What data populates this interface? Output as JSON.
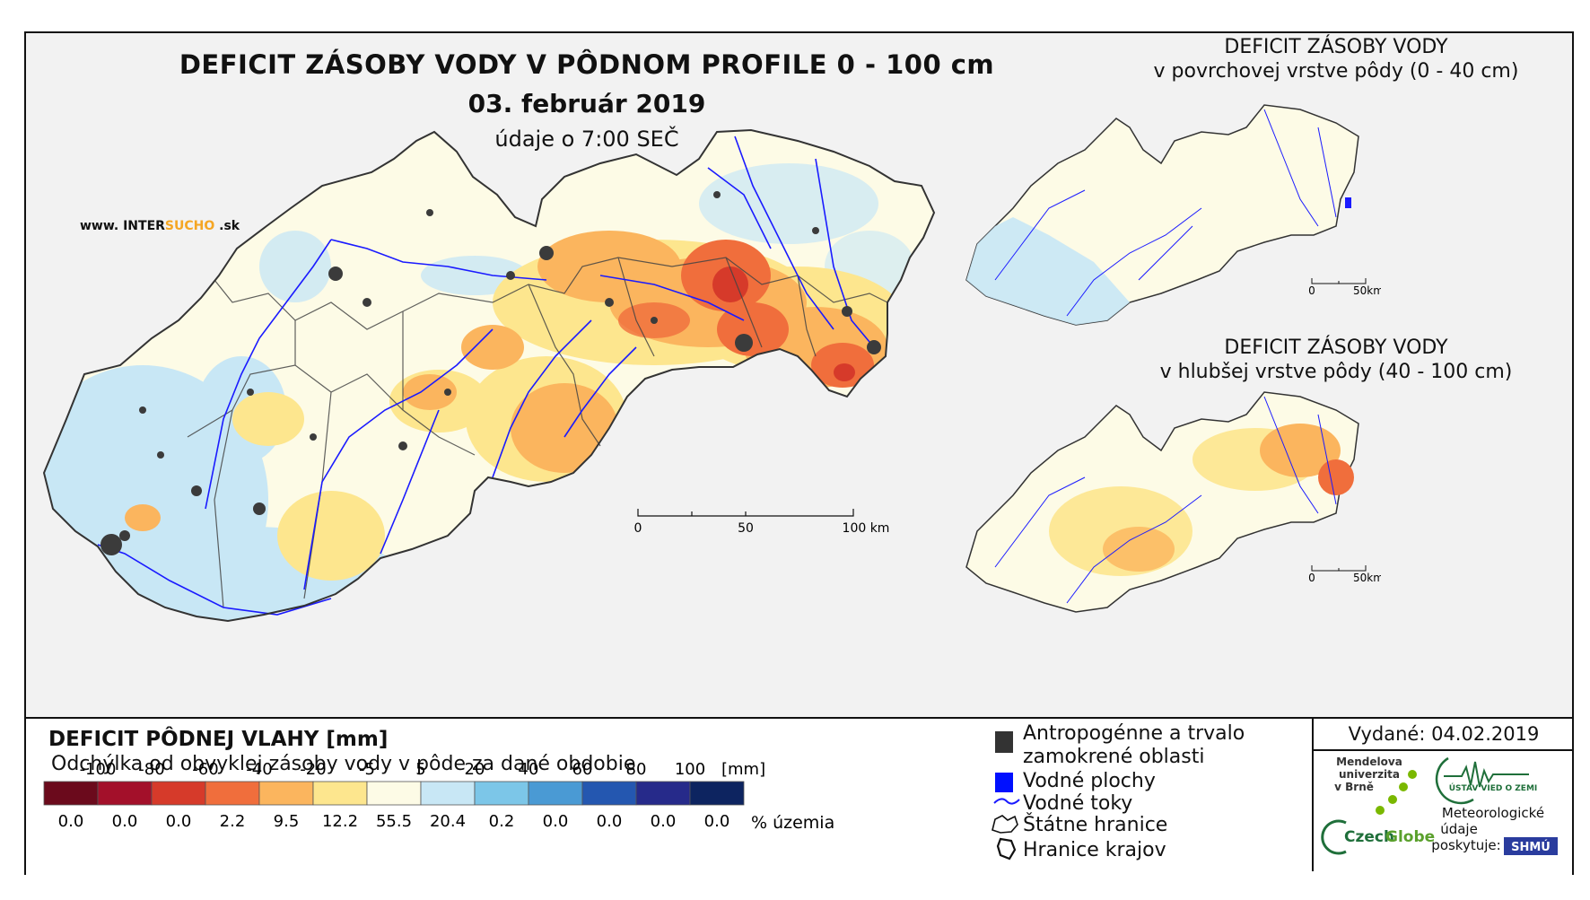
{
  "title": "DEFICIT ZÁSOBY VODY V PÔDNOM PROFILE 0 - 100 cm",
  "date": "03. február 2019",
  "time_note": "údaje o 7:00 SEČ",
  "website": {
    "prefix": "www. INTER",
    "accent": "SUCHO",
    "suffix": " .sk"
  },
  "main_scale": {
    "labels": [
      "0",
      "50",
      "100 km"
    ]
  },
  "inset_top": {
    "title_line1": "DEFICIT ZÁSOBY VODY",
    "title_line2": "v povrchovej vrstve pôdy (0 - 40 cm)",
    "scale": [
      "0",
      "50km"
    ]
  },
  "inset_bottom": {
    "title_line1": "DEFICIT ZÁSOBY VODY",
    "title_line2": "v hlubšej vrstve pôdy (40 - 100 cm)",
    "scale": [
      "0",
      "50km"
    ]
  },
  "legend": {
    "title": "DEFICIT PÔDNEJ VLAHY [mm]",
    "subtitle": "Odchýlka od obvyklej zásoby vody v pôde za dané obdobie",
    "unit": "[mm]",
    "percent_label": "% územia",
    "thresholds": [
      "-100",
      "-80",
      "-60",
      "-40",
      "-20",
      "-5",
      "5",
      "20",
      "40",
      "60",
      "80",
      "100"
    ],
    "colors": [
      "#6b0a1c",
      "#a3102a",
      "#d63a2a",
      "#f06e3c",
      "#fbb55e",
      "#fde68e",
      "#fdfbe6",
      "#c8e7f5",
      "#7cc6e8",
      "#4a9ad4",
      "#2457b0",
      "#262a8a",
      "#0d2460"
    ],
    "percents": [
      "0.0",
      "0.0",
      "0.0",
      "2.2",
      "9.5",
      "12.2",
      "55.5",
      "20.4",
      "0.2",
      "0.0",
      "0.0",
      "0.0",
      "0.0"
    ]
  },
  "symbols": {
    "anthropogenic_line1": "Antropogénne a trvalo",
    "anthropogenic_line2": "zamokrené oblasti",
    "water_bodies": "Vodné plochy",
    "rivers": "Vodné toky",
    "state_border": "Štátne hranice",
    "regions": "Hranice krajov"
  },
  "issued": "Vydané: 04.02.2019",
  "logos": {
    "mendel_line1": "Mendelova",
    "mendel_line2": "univerzita",
    "mendel_line3": "v Brně",
    "czech": "Czech",
    "globe": "Globe",
    "ustav": "ÚSTAV VIED O ZEMI",
    "meteo_line1": "Meteorologické",
    "meteo_line2": "údaje",
    "meteo_line3": "poskytuje:",
    "shmu": "SHMÚ"
  }
}
